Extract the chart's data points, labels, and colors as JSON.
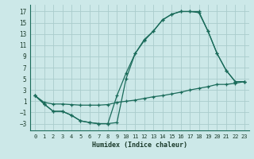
{
  "bg_color": "#cce8e8",
  "line_color": "#1a6b5a",
  "grid_color": "#aacccc",
  "xlabel": "Humidex (Indice chaleur)",
  "xlim": [
    -0.5,
    23.5
  ],
  "ylim": [
    -4.2,
    18.2
  ],
  "yticks": [
    -3,
    -1,
    1,
    3,
    5,
    7,
    9,
    11,
    13,
    15,
    17
  ],
  "xticks": [
    0,
    1,
    2,
    3,
    4,
    5,
    6,
    7,
    8,
    9,
    10,
    11,
    12,
    13,
    14,
    15,
    16,
    17,
    18,
    19,
    20,
    21,
    22,
    23
  ],
  "line1_x": [
    0,
    1,
    2,
    3,
    4,
    5,
    6,
    7,
    8,
    9,
    10,
    11,
    12,
    13,
    14,
    15,
    16,
    17,
    18,
    19,
    20,
    21,
    22,
    23
  ],
  "line1_y": [
    2,
    0.5,
    -0.8,
    -0.8,
    -1.5,
    -2.5,
    -2.8,
    -3.0,
    -3.0,
    2.0,
    6.0,
    9.5,
    12.0,
    13.5,
    15.5,
    16.5,
    17.0,
    17.0,
    16.8,
    13.5,
    9.5,
    6.5,
    4.5,
    4.5
  ],
  "line2_x": [
    0,
    1,
    2,
    3,
    4,
    5,
    6,
    7,
    8,
    9,
    10,
    11,
    12,
    13,
    14,
    15,
    16,
    17,
    18,
    19,
    20,
    21,
    22,
    23
  ],
  "line2_y": [
    2,
    0.5,
    -0.8,
    -0.8,
    -1.5,
    -2.5,
    -2.8,
    -3.0,
    -3.0,
    -2.8,
    5.0,
    9.5,
    11.8,
    13.5,
    15.5,
    16.5,
    17.0,
    17.0,
    17.0,
    13.5,
    9.5,
    6.5,
    4.5,
    4.5
  ],
  "line3_x": [
    0,
    1,
    2,
    3,
    4,
    5,
    6,
    7,
    8,
    9,
    10,
    11,
    12,
    13,
    14,
    15,
    16,
    17,
    18,
    19,
    20,
    21,
    22,
    23
  ],
  "line3_y": [
    2.0,
    0.8,
    0.5,
    0.5,
    0.4,
    0.3,
    0.3,
    0.3,
    0.4,
    0.8,
    1.0,
    1.2,
    1.5,
    1.8,
    2.0,
    2.3,
    2.6,
    3.0,
    3.3,
    3.6,
    4.0,
    4.0,
    4.2,
    4.5
  ]
}
